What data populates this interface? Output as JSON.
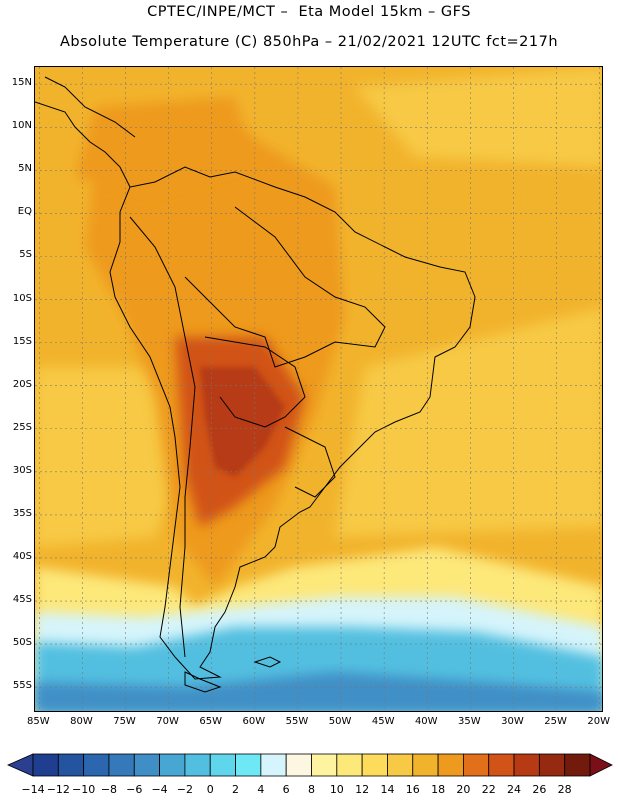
{
  "header": {
    "title_line1": "CPTEC/INPE/MCT –  Eta Model 15km – GFS",
    "title_line2": "Absolute Temperature (C) 850hPa – 21/02/2021 12UTC fct=217h"
  },
  "map": {
    "lat_ticks": [
      "15N",
      "10N",
      "5N",
      "EQ",
      "5S",
      "10S",
      "15S",
      "20S",
      "25S",
      "30S",
      "35S",
      "40S",
      "45S",
      "50S",
      "55S"
    ],
    "lat_values": [
      15,
      10,
      5,
      0,
      -5,
      -10,
      -15,
      -20,
      -25,
      -30,
      -35,
      -40,
      -45,
      -50,
      -55
    ],
    "lon_ticks": [
      "85W",
      "80W",
      "75W",
      "70W",
      "65W",
      "60W",
      "55W",
      "50W",
      "45W",
      "40W",
      "35W",
      "30W",
      "25W",
      "20W"
    ],
    "lon_values": [
      -85,
      -80,
      -75,
      -70,
      -65,
      -60,
      -55,
      -50,
      -45,
      -40,
      -35,
      -30,
      -25,
      -20
    ],
    "extent": {
      "lon_min": -85.5,
      "lon_max": -19.5,
      "lat_min": -58,
      "lat_max": 17
    }
  },
  "colorbar": {
    "labels": [
      "-14",
      "-12",
      "-10",
      "-8",
      "-6",
      "-4",
      "-2",
      "0",
      "2",
      "4",
      "6",
      "8",
      "10",
      "12",
      "14",
      "16",
      "18",
      "20",
      "22",
      "24",
      "26",
      "28"
    ],
    "colors": [
      "#1f3e8f",
      "#2454a0",
      "#2b66ae",
      "#3579bb",
      "#3f8fc6",
      "#48a6d3",
      "#52bfe0",
      "#5fd6ec",
      "#6fe8f5",
      "#d5f4fb",
      "#fdf7e2",
      "#fdf3a0",
      "#fde87a",
      "#fcdc5a",
      "#f7c945",
      "#f2b32c",
      "#ee9a1e",
      "#e2701a",
      "#d15318",
      "#b63a14",
      "#962a10",
      "#721b0c"
    ],
    "under_color": "#2a3f8f",
    "over_color": "#7a0f1a"
  }
}
